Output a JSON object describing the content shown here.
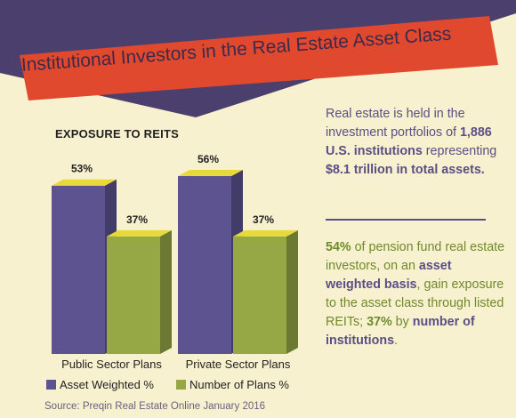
{
  "banner": {
    "title": "Institutional Investors in the Real Estate Asset Class"
  },
  "colors": {
    "background": "#f8f1cf",
    "banner_red": "#e0492e",
    "navy_triangle": "#4b3f6e",
    "asset_weighted": "#5c5390",
    "number_of_plans": "#95a845",
    "bar_top": "#e7d93a",
    "text_purple": "#5a4e86",
    "text_green": "#6f8a2d"
  },
  "chart_data": {
    "type": "bar",
    "title": "EXPOSURE TO REITS",
    "categories": [
      "Public Sector Plans",
      "Private Sector Plans"
    ],
    "series": [
      {
        "name": "Asset Weighted %",
        "values": [
          53,
          56
        ],
        "labels": [
          "53%",
          "56%"
        ],
        "color": "#5c5390"
      },
      {
        "name": "Number of Plans %",
        "values": [
          37,
          37
        ],
        "labels": [
          "37%",
          "37%"
        ],
        "color": "#95a845"
      }
    ],
    "ylim": [
      0,
      56
    ],
    "grid": false,
    "legend": "bottom"
  },
  "source": "Source: Preqin Real Estate Online January 2016",
  "text": {
    "p1": {
      "a": "Real estate is held in the investment portfolios of ",
      "b": "1,886 U.S. institutions",
      "c": " representing ",
      "d": "$8.1 trillion in total assets."
    },
    "p2": {
      "a": "54%",
      "b": " of pension fund real estate investors, on an ",
      "c": "asset weighted basis",
      "d": ", gain exposure to the asset class through listed REITs; ",
      "e": "37%",
      "f": " by ",
      "g": "number of institutions",
      "h": "."
    }
  }
}
